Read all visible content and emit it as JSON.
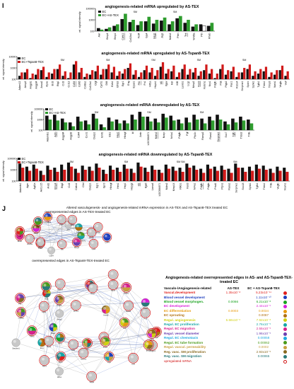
{
  "panel_i": "I",
  "panel_j": "J",
  "charts": [
    {
      "id": "c1",
      "title": "angiogenesis-related mRNA upregulated by AS-TEX",
      "ylabel": "rel. signal intensity",
      "yticks": [
        "100000",
        "1000",
        "100"
      ],
      "legend": [
        "EC",
        "EC+AS-TEX"
      ],
      "series_colors": [
        "#111111",
        "#2e9c2e"
      ],
      "categories": [
        "Alvr",
        "Bmp4",
        "Bmp1",
        "Cdh11",
        "Col18a1",
        "Fzd4",
        "Gja4",
        "Heg1",
        "Jag1",
        "Mdm2",
        "Pten",
        "Tek",
        "Wnt5a",
        "Ptn",
        "Rhob"
      ],
      "underlined": [
        3,
        7,
        11
      ],
      "sm_marks": [
        "SM",
        "SM"
      ],
      "ec": [
        2.4,
        2.3,
        2.7,
        3.6,
        3.2,
        2.8,
        3.3,
        3.0,
        3.4,
        2.9,
        3.7,
        3.1,
        2.6,
        2.9,
        2.7
      ],
      "ectx": [
        2.2,
        2.5,
        2.9,
        4.3,
        3.5,
        3.3,
        3.9,
        3.5,
        3.8,
        3.3,
        4.0,
        3.5,
        2.9,
        2.7,
        3.1
      ]
    },
    {
      "id": "c2",
      "title": "angiogenesis-related mRNA upregulated by AS-Tspan8-TEX",
      "ylabel": "rel. signal intensity",
      "yticks": [
        "10000",
        "1000",
        "100"
      ],
      "legend": [
        "EC",
        "EC+Tspan8-TEX"
      ],
      "series_colors": [
        "#111111",
        "#d11a1a"
      ],
      "categories": [
        "Adam12",
        "Aimp2",
        "Angpt1",
        "Angpt4",
        "Anxa2",
        "Apoe",
        "Bcl2",
        "Btg1",
        "Ccl2",
        "Ccl12",
        "Cd34",
        "Cdh5",
        "Col8a1",
        "Col15a1",
        "Ctgf",
        "Cyr61",
        "Dll4",
        "Edn1",
        "Efnb2",
        "Egr1",
        "Eng",
        "Epas1",
        "Flt1",
        "Fn1",
        "Hif1a",
        "Hspb1",
        "Id1",
        "Itgav",
        "Kdr",
        "Klf2",
        "Lamb1",
        "Lrg1",
        "Mmp2",
        "Nos3",
        "Notch1",
        "Nrp1",
        "Pdgfb",
        "Plat",
        "Ptgs2",
        "Rac1",
        "Robo4",
        "Serpine1",
        "Sparc",
        "Sphk1",
        "Tgfb1",
        "Thbs1",
        "Timp3",
        "Vash1",
        "Vegfa",
        "Vwf"
      ],
      "underlined": [
        10,
        22,
        26,
        33
      ],
      "sm_marks": [
        "SM",
        "SM",
        "SM",
        "SM",
        "SM"
      ],
      "ec": [
        2.3,
        2.6,
        2.1,
        2.4,
        2.8,
        2.2,
        2.5,
        2.9,
        2.3,
        2.1,
        3.3,
        2.6,
        2.2,
        2.4,
        2.7,
        2.4,
        2.9,
        2.6,
        2.3,
        2.5,
        3.0,
        2.4,
        2.2,
        2.8,
        2.6,
        2.3,
        3.1,
        2.5,
        2.7,
        2.2,
        2.9,
        2.4,
        2.6,
        2.3,
        2.8,
        2.5,
        2.1,
        2.9,
        2.4,
        2.7,
        2.2,
        2.6,
        2.9,
        2.3,
        2.5,
        2.7,
        2.2,
        2.4,
        2.8,
        2.3
      ],
      "ectx": [
        2.6,
        2.9,
        2.5,
        2.9,
        3.1,
        2.6,
        2.9,
        3.3,
        2.7,
        2.6,
        3.6,
        3.0,
        2.5,
        2.8,
        3.2,
        2.9,
        3.3,
        3.1,
        2.7,
        2.9,
        3.4,
        2.8,
        2.6,
        3.2,
        3.0,
        2.8,
        3.5,
        2.9,
        3.2,
        2.6,
        3.3,
        2.9,
        3.0,
        2.7,
        3.3,
        2.9,
        2.5,
        3.3,
        2.8,
        3.1,
        2.6,
        3.0,
        3.3,
        2.7,
        2.9,
        3.1,
        2.6,
        2.8,
        3.2,
        2.7
      ]
    },
    {
      "id": "c3",
      "title": "angiogenesis-related mRNA downregulated by AS-TEX",
      "ylabel": "rel. signal intensity",
      "yticks": [
        "100000",
        "1000",
        "100"
      ],
      "legend": [
        "EC",
        "EC+AS-TEX"
      ],
      "series_colors": [
        "#111111",
        "#2e9c2e"
      ],
      "categories": [
        "Adamts1",
        "Adm",
        "Angptl4",
        "Angpt2",
        "Cd44",
        "Cxcl1",
        "Dusp1",
        "Emf1",
        "Ets1",
        "Hey1",
        "Hbegf",
        "Id",
        "Junb",
        "LOC684871",
        "Mdm2",
        "Nrarp",
        "Nr4a1",
        "Pdgfb",
        "Pgf",
        "Ptp1b",
        "Ramp2",
        "Rasa1",
        "Serpine1",
        "Sox7",
        "Tgfb",
        "Thbs2",
        "Tnfa"
      ],
      "underlined": [
        1,
        9,
        14,
        22,
        24
      ],
      "sm_marks": [
        "SM",
        "SM",
        "SM"
      ],
      "ec": [
        3.5,
        3.6,
        3.2,
        2.8,
        3.4,
        3.0,
        3.7,
        2.6,
        3.3,
        3.1,
        3.0,
        3.6,
        3.9,
        3.4,
        3.2,
        3.7,
        3.5,
        3.1,
        3.3,
        3.6,
        3.2,
        3.4,
        3.6,
        2.9,
        3.2,
        3.4,
        3.1
      ],
      "ectx": [
        3.1,
        3.0,
        2.8,
        2.4,
        2.9,
        2.6,
        3.2,
        2.3,
        2.9,
        2.7,
        2.7,
        3.1,
        3.4,
        2.9,
        2.8,
        3.3,
        3.0,
        2.7,
        2.8,
        3.1,
        2.7,
        3.0,
        3.1,
        2.6,
        2.8,
        3.0,
        2.7
      ]
    },
    {
      "id": "c4",
      "title": "angiogenesis-related mRNA downregulated by AS-Tspan8-TEX",
      "ylabel": "rel. signal intensity",
      "yticks": [
        "100000",
        "1000",
        "100"
      ],
      "legend": [
        "EC",
        "EC+Tspan8-TEX"
      ],
      "series_colors": [
        "#111111",
        "#d11a1a"
      ],
      "categories": [
        "Adamts1",
        "Ager",
        "Agt1a",
        "Akr1c15",
        "Arid1",
        "Bmp4",
        "Btg2",
        "Ccl2",
        "Cdkn1",
        "Ctnl",
        "Dusp1",
        "Egr1",
        "Gpr3",
        "Hbegf",
        "Hes1",
        "Hey1",
        "Hspg2",
        "Id1",
        "Itga6",
        "Lama4",
        "LOC684871",
        "Mdm2",
        "Mmp14",
        "Nfkb1",
        "Nos3",
        "Nr4a1",
        "Pdgfb",
        "Pdgfa",
        "Prkd1",
        "Ptpn1",
        "Rasa1",
        "Serpine1",
        "Sox18",
        "Sphk1",
        "Tgfb1",
        "Thbs1",
        "Tnfa",
        "Vegfb",
        "Vcam1"
      ],
      "underlined": [
        5,
        17,
        26
      ],
      "sm_marks": [
        "SM",
        "SM",
        "SM SM",
        "SM"
      ],
      "ec": [
        3.7,
        3.4,
        3.6,
        3.0,
        3.5,
        3.3,
        3.6,
        3.8,
        3.2,
        3.5,
        3.4,
        3.7,
        3.1,
        3.5,
        3.3,
        3.6,
        3.2,
        3.8,
        3.3,
        3.5,
        3.1,
        3.6,
        3.4,
        3.3,
        3.7,
        3.5,
        3.2,
        3.6,
        3.4,
        3.5,
        3.2,
        3.7,
        3.3,
        3.4,
        3.6,
        3.5,
        3.2,
        3.4,
        3.3
      ],
      "ectx": [
        3.3,
        3.0,
        3.2,
        2.6,
        3.1,
        2.9,
        3.1,
        3.4,
        2.8,
        3.1,
        3.0,
        3.3,
        2.7,
        3.1,
        2.9,
        3.2,
        2.8,
        3.4,
        2.9,
        3.1,
        2.8,
        3.2,
        3.0,
        2.9,
        3.3,
        3.1,
        2.8,
        3.2,
        3.0,
        3.1,
        2.8,
        3.3,
        2.9,
        3.0,
        3.2,
        3.1,
        2.8,
        3.0,
        2.9
      ]
    }
  ],
  "network": {
    "title": "Altered vasculogenesis- and angiogenesis-related mRNA expression in AS-TEX and AS-Tspan8-TEX treated EC",
    "sub1": "overrepresented edges in AS-TEX-treated EC",
    "sub2": "overrepresented edges in AS-Tspan8-TEX-treated EC"
  },
  "legend_table": {
    "title": "Angiogenesis-related overrepresented edges in AS- and AS-Tspan8-TEX-treated EC",
    "col_name": "Vasculo-/Angiogenesis-related",
    "col_a": "AS-TEX",
    "col_b": "EC + AS-Tspan8-TEX",
    "rows": [
      {
        "name": "Vascul.development",
        "a": "1.35x10⁻⁸",
        "b": "5.23x10⁻¹¹",
        "color": "#e0201c"
      },
      {
        "name": "Blood vessel development",
        "a": "",
        "b": "1.11x10⁻¹⁰",
        "color": "#1f3fbf"
      },
      {
        "name": "Blood vessel morphogen.",
        "a": "0.0066",
        "b": "6.21x10⁻⁸",
        "color": "#19a31f"
      },
      {
        "name": "EC development",
        "a": "",
        "b": "2.44x10⁻⁵",
        "color": "#d81fd8"
      },
      {
        "name": "EC differentiation",
        "a": "0.0003",
        "b": "0.0034",
        "color": "#e89a10"
      },
      {
        "name": "EC sprouting",
        "a": "",
        "b": "0.0087",
        "color": "#b07010"
      },
      {
        "name": "Regul. angiogenesis",
        "a": "5.58x10⁻⁶",
        "b": "7.92x10⁻⁸",
        "color": "#d0d010"
      },
      {
        "name": "Regul. EC proliferation",
        "a": "",
        "b": "2.76x10⁻⁵",
        "color": "#16a6a6"
      },
      {
        "name": "Regul. EC migration",
        "a": "",
        "b": "2.55x10⁻⁵",
        "color": "#d8208c"
      },
      {
        "name": "Regul. vessel diameter",
        "a": "",
        "b": "1.96x10⁻⁵",
        "color": "#6a3fb0"
      },
      {
        "name": "Regul. EC chemotaxis",
        "a": "",
        "b": "0.00058",
        "color": "#1fa8e0"
      },
      {
        "name": "Regul. EC tube formation",
        "a": "",
        "b": "0.00062",
        "color": "#4a9a1a"
      },
      {
        "name": "Regul. vascul. permeability",
        "a": "",
        "b": "0.0002",
        "color": "#c8a040"
      },
      {
        "name": "Reg. vasc. SM proliferation",
        "a": "",
        "b": "2.93x10⁻⁵",
        "color": "#8a6a20"
      },
      {
        "name": "Reg. vasc. SM migration",
        "a": "",
        "b": "0.00065",
        "color": "#2a7a7a"
      }
    ],
    "upregulated": "upregulated mRNA"
  },
  "nodes_a": [
    "Cd44",
    "LOC684871",
    "Gja4",
    "Bmp4",
    "Tek",
    "Cd34",
    "Pten",
    "Mdm2",
    "Wnt5a",
    "Rhob",
    "Ptn",
    "Heg1",
    "Jag1",
    "Col18a1",
    "Fzd4",
    "Alvr",
    "Adm",
    "Cdh11",
    "Nr4a1",
    "Efnb2"
  ],
  "nodes_b": [
    "Ager",
    "Angpt1",
    "Bmp4",
    "Ccl2",
    "Tgfb1",
    "Fzd1",
    "Lrg1",
    "Vegfa",
    "Kdr",
    "Notch1",
    "Dll4",
    "Hif1a",
    "Egr1",
    "Nos3",
    "Edn1",
    "Eng",
    "Ptgs2",
    "Serpine1",
    "Thbs1",
    "Sparc",
    "Col8a1",
    "Mmp2",
    "Itgav",
    "Flt1",
    "Pdgfb",
    "Klf2",
    "Cdh5",
    "Robo4",
    "Sphk1",
    "Plat",
    "Nrp1",
    "Id1",
    "Apoe",
    "Anxa2",
    "Hspb1",
    "Epas1",
    "Fn1",
    "Timp3",
    "Vwf",
    "Cyr61"
  ]
}
